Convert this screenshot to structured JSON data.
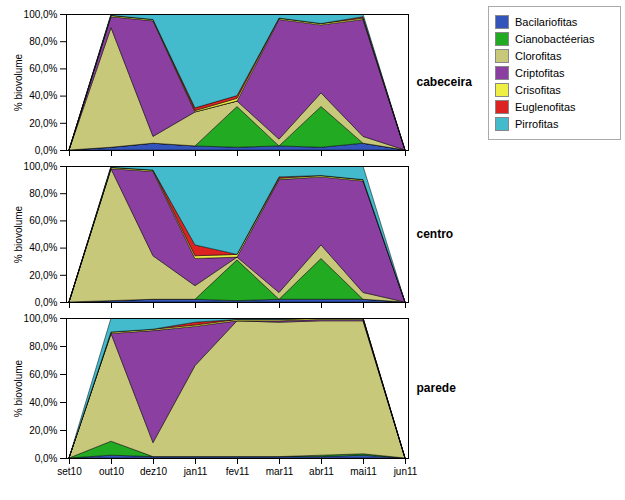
{
  "chart_data": [
    {
      "type": "area",
      "stacked": true,
      "title": "cabeceira",
      "ylabel": "% biovolume",
      "categories": [
        "set10",
        "out10",
        "dez10",
        "jan11",
        "fev11",
        "mar11",
        "abr11",
        "mai11",
        "jun11"
      ],
      "series": [
        {
          "name": "Bacilariofitas",
          "color": "#3355bb",
          "values": [
            0,
            2,
            5,
            3,
            2,
            3,
            2,
            5,
            0
          ]
        },
        {
          "name": "Cianobactéerias",
          "color": "#22aa22",
          "values": [
            0,
            0,
            0,
            0,
            30,
            0,
            30,
            0,
            0
          ]
        },
        {
          "name": "Clorofitas",
          "color": "#c8c87a",
          "values": [
            0,
            88,
            5,
            25,
            4,
            5,
            10,
            5,
            0
          ]
        },
        {
          "name": "Criptofitas",
          "color": "#8b3fa0",
          "values": [
            0,
            8,
            85,
            0,
            0,
            88,
            50,
            86,
            0
          ]
        },
        {
          "name": "Crisofitas",
          "color": "#eeee44",
          "values": [
            0,
            1,
            1,
            1,
            2,
            1,
            1,
            1,
            0
          ]
        },
        {
          "name": "Euglenofitas",
          "color": "#dd2222",
          "values": [
            0,
            0,
            0,
            2,
            2,
            0,
            0,
            1,
            0
          ]
        },
        {
          "name": "Pirrofitas",
          "color": "#44bbcc",
          "values": [
            0,
            1,
            4,
            69,
            60,
            3,
            7,
            2,
            0
          ]
        }
      ],
      "ylim": [
        0,
        100
      ],
      "yticks": [
        {
          "value": 0,
          "label": "0,0%"
        },
        {
          "value": 20,
          "label": "20,0%"
        },
        {
          "value": 40,
          "label": "40,0%"
        },
        {
          "value": 60,
          "label": "60,0%"
        },
        {
          "value": 80,
          "label": "80,0%"
        },
        {
          "value": 100,
          "label": "100,0%"
        }
      ],
      "tick_labels": "y",
      "legend": "upper right"
    },
    {
      "type": "area",
      "stacked": true,
      "title": "centro",
      "ylabel": "% biovolume",
      "categories": [
        "set10",
        "out10",
        "dez10",
        "jan11",
        "fev11",
        "mar11",
        "abr11",
        "mai11",
        "jun11"
      ],
      "series": [
        {
          "name": "Bacilariofitas",
          "color": "#3355bb",
          "values": [
            0,
            1,
            2,
            2,
            1,
            2,
            2,
            2,
            0
          ]
        },
        {
          "name": "Cianobactéerias",
          "color": "#22aa22",
          "values": [
            0,
            0,
            0,
            0,
            30,
            0,
            30,
            0,
            0
          ]
        },
        {
          "name": "Clorofitas",
          "color": "#c8c87a",
          "values": [
            0,
            97,
            32,
            10,
            2,
            5,
            10,
            5,
            0
          ]
        },
        {
          "name": "Criptofitas",
          "color": "#8b3fa0",
          "values": [
            0,
            0,
            62,
            20,
            0,
            83,
            50,
            82,
            0
          ]
        },
        {
          "name": "Crisofitas",
          "color": "#eeee44",
          "values": [
            0,
            1,
            1,
            2,
            2,
            1,
            1,
            1,
            0
          ]
        },
        {
          "name": "Euglenofitas",
          "color": "#dd2222",
          "values": [
            0,
            0,
            0,
            8,
            0,
            1,
            0,
            0,
            0
          ]
        },
        {
          "name": "Pirrofitas",
          "color": "#44bbcc",
          "values": [
            0,
            1,
            3,
            58,
            65,
            8,
            7,
            10,
            0
          ]
        }
      ],
      "ylim": [
        0,
        100
      ],
      "yticks": [
        {
          "value": 0,
          "label": "0,0%"
        },
        {
          "value": 20,
          "label": "20,0%"
        },
        {
          "value": 40,
          "label": "40,0%"
        },
        {
          "value": 60,
          "label": "60,0%"
        },
        {
          "value": 80,
          "label": "80,0%"
        },
        {
          "value": 100,
          "label": "100,0%"
        }
      ],
      "tick_labels": "y"
    },
    {
      "type": "area",
      "stacked": true,
      "title": "parede",
      "ylabel": "% biovolume",
      "categories": [
        "set10",
        "out10",
        "dez10",
        "jan11",
        "fev11",
        "mar11",
        "abr11",
        "mai11",
        "jun11"
      ],
      "series": [
        {
          "name": "Bacilariofitas",
          "color": "#3355bb",
          "values": [
            0,
            2,
            1,
            1,
            1,
            1,
            1,
            2,
            0
          ]
        },
        {
          "name": "Cianobactéerias",
          "color": "#22aa22",
          "values": [
            0,
            10,
            0,
            0,
            0,
            0,
            1,
            1,
            0
          ]
        },
        {
          "name": "Clorofitas",
          "color": "#c8c87a",
          "values": [
            0,
            77,
            10,
            65,
            97,
            96,
            96,
            95,
            0
          ]
        },
        {
          "name": "Criptofitas",
          "color": "#8b3fa0",
          "values": [
            0,
            0,
            80,
            28,
            0,
            1,
            1,
            1,
            0
          ]
        },
        {
          "name": "Crisofitas",
          "color": "#eeee44",
          "values": [
            0,
            1,
            1,
            1,
            1,
            1,
            1,
            1,
            0
          ]
        },
        {
          "name": "Euglenofitas",
          "color": "#dd2222",
          "values": [
            0,
            0,
            0,
            2,
            0,
            0,
            0,
            0,
            0
          ]
        },
        {
          "name": "Pirrofitas",
          "color": "#44bbcc",
          "values": [
            0,
            10,
            8,
            3,
            1,
            1,
            0,
            0,
            0
          ]
        }
      ],
      "ylim": [
        0,
        100
      ],
      "yticks": [
        {
          "value": 0,
          "label": "0,0%"
        },
        {
          "value": 20,
          "label": "20,0%"
        },
        {
          "value": 40,
          "label": "40,0%"
        },
        {
          "value": 60,
          "label": "60,0%"
        },
        {
          "value": 80,
          "label": "80,0%"
        },
        {
          "value": 100,
          "label": "100,0%"
        }
      ]
    }
  ]
}
